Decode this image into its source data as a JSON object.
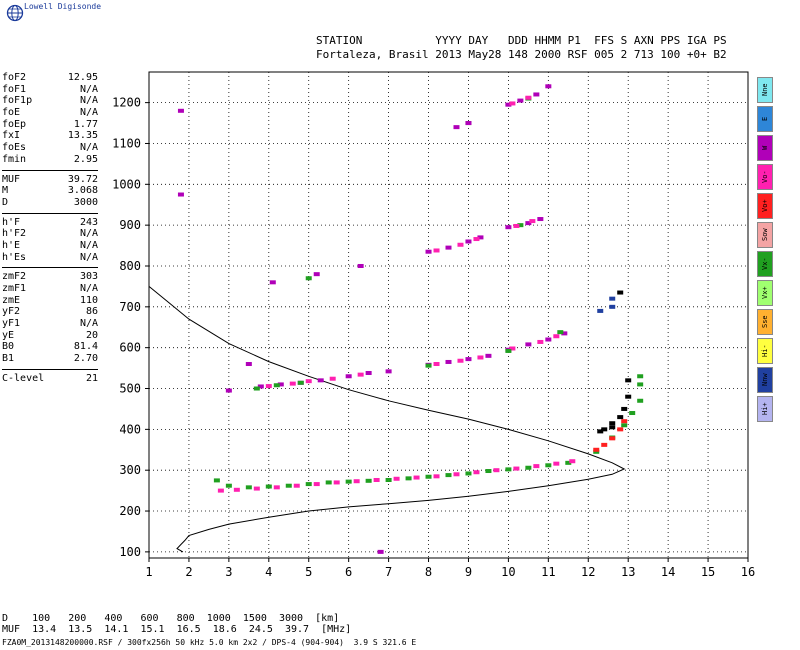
{
  "brand": "Lowell Digisonde",
  "header": {
    "line1": "STATION           YYYY DAY   DDD HHMM P1  FFS S AXN PPS IGA PS",
    "line2": "Fortaleza, Brasil 2013 May28 148 2000 RSF 005 2 713 100 +0+ B2"
  },
  "params": [
    {
      "k": "foF2",
      "v": "12.95"
    },
    {
      "k": "foF1",
      "v": "N/A"
    },
    {
      "k": "foF1p",
      "v": "N/A"
    },
    {
      "k": "foE",
      "v": "N/A"
    },
    {
      "k": "foEp",
      "v": "1.77"
    },
    {
      "k": "fxI",
      "v": "13.35"
    },
    {
      "k": "foEs",
      "v": "N/A"
    },
    {
      "k": "fmin",
      "v": "2.95"
    },
    {
      "k": "---"
    },
    {
      "k": "MUF",
      "v": "39.72"
    },
    {
      "k": "M",
      "v": "3.068"
    },
    {
      "k": "D",
      "v": "3000"
    },
    {
      "k": "---"
    },
    {
      "k": "h'F",
      "v": "243"
    },
    {
      "k": "h'F2",
      "v": "N/A"
    },
    {
      "k": "h'E",
      "v": "N/A"
    },
    {
      "k": "h'Es",
      "v": "N/A"
    },
    {
      "k": "---"
    },
    {
      "k": "zmF2",
      "v": "303"
    },
    {
      "k": "zmF1",
      "v": "N/A"
    },
    {
      "k": "zmE",
      "v": "110"
    },
    {
      "k": "yF2",
      "v": "86"
    },
    {
      "k": "yF1",
      "v": "N/A"
    },
    {
      "k": "yE",
      "v": "20"
    },
    {
      "k": "B0",
      "v": "81.4"
    },
    {
      "k": "B1",
      "v": "2.70"
    },
    {
      "k": "---"
    },
    {
      "k": "C-level",
      "v": "21"
    }
  ],
  "legend": [
    {
      "label": "Nne",
      "color": "#7fe8f0"
    },
    {
      "label": "E",
      "color": "#2e86d8"
    },
    {
      "label": "W",
      "color": "#b000b8"
    },
    {
      "label": "Vo-",
      "color": "#ff20b0"
    },
    {
      "label": "Vo+",
      "color": "#ff2020"
    },
    {
      "label": "Sow",
      "color": "#f4a4a4"
    },
    {
      "label": "Vx-",
      "color": "#20a020"
    },
    {
      "label": "Vx+",
      "color": "#a0ff70"
    },
    {
      "label": "Sse",
      "color": "#ffb030"
    },
    {
      "label": "Hi-",
      "color": "#ffff40"
    },
    {
      "label": "Nnw",
      "color": "#2040a0"
    },
    {
      "label": "Hi+",
      "color": "#b4b4f0"
    }
  ],
  "muf_table": {
    "line1": "D    100   200   400   600   800  1000  1500  3000  [km]",
    "line2": "MUF  13.4  13.5  14.1  15.1  16.5  18.6  24.5  39.7  [MHz]"
  },
  "footer": "FZA0M_2013148200000.RSF / 300fx256h 50 kHz 5.0 km 2x2 / DPS-4 (904-904)  3.9 S 321.6 E",
  "chart_data": {
    "type": "scatter",
    "xlim": [
      1,
      16
    ],
    "ylim": [
      85,
      1275
    ],
    "xticks": [
      1,
      2,
      3,
      4,
      5,
      6,
      7,
      8,
      9,
      10,
      11,
      12,
      13,
      14,
      15,
      16
    ],
    "yticks": [
      100,
      200,
      300,
      400,
      500,
      600,
      700,
      800,
      900,
      1000,
      1100,
      1200
    ],
    "grid": true,
    "series": [
      {
        "color": "#20a020",
        "points": [
          [
            2.7,
            275
          ],
          [
            3.0,
            262
          ],
          [
            3.5,
            258
          ],
          [
            4.0,
            260
          ],
          [
            4.5,
            262
          ],
          [
            5.0,
            266
          ],
          [
            5.5,
            270
          ],
          [
            6.0,
            272
          ],
          [
            6.5,
            274
          ],
          [
            7.0,
            276
          ],
          [
            7.5,
            280
          ],
          [
            8.0,
            284
          ],
          [
            8.5,
            288
          ],
          [
            9.0,
            292
          ],
          [
            9.5,
            298
          ],
          [
            10.0,
            302
          ],
          [
            10.5,
            306
          ],
          [
            11.0,
            312
          ],
          [
            11.5,
            318
          ],
          [
            12.2,
            345
          ],
          [
            12.6,
            380
          ],
          [
            12.9,
            410
          ],
          [
            13.1,
            440
          ],
          [
            13.3,
            470
          ],
          [
            13.3,
            510
          ],
          [
            13.3,
            530
          ]
        ]
      },
      {
        "color": "#ff20b0",
        "points": [
          [
            2.8,
            250
          ],
          [
            3.2,
            252
          ],
          [
            3.7,
            255
          ],
          [
            4.2,
            258
          ],
          [
            4.7,
            262
          ],
          [
            5.2,
            266
          ],
          [
            5.7,
            270
          ],
          [
            6.2,
            273
          ],
          [
            6.7,
            276
          ],
          [
            7.2,
            279
          ],
          [
            7.7,
            282
          ],
          [
            8.2,
            285
          ],
          [
            8.7,
            290
          ],
          [
            9.2,
            295
          ],
          [
            9.7,
            300
          ],
          [
            10.2,
            304
          ],
          [
            10.7,
            310
          ],
          [
            11.2,
            316
          ],
          [
            11.6,
            322
          ]
        ]
      },
      {
        "color": "#ff2020",
        "points": [
          [
            12.2,
            350
          ],
          [
            12.4,
            362
          ],
          [
            12.6,
            378
          ],
          [
            12.8,
            400
          ],
          [
            12.9,
            420
          ]
        ]
      },
      {
        "color": "#b000b8",
        "points": [
          [
            3.8,
            505
          ],
          [
            4.3,
            510
          ],
          [
            4.8,
            514
          ],
          [
            5.3,
            520
          ],
          [
            6.0,
            530
          ],
          [
            6.5,
            538
          ],
          [
            7.0,
            542
          ],
          [
            8.0,
            558
          ],
          [
            8.5,
            565
          ],
          [
            9.0,
            572
          ],
          [
            9.5,
            580
          ],
          [
            10.0,
            595
          ],
          [
            10.5,
            608
          ],
          [
            11.0,
            620
          ],
          [
            11.4,
            635
          ],
          [
            6.8,
            100
          ],
          [
            3.0,
            495
          ],
          [
            1.8,
            1180
          ],
          [
            1.8,
            975
          ],
          [
            3.5,
            560
          ]
        ]
      },
      {
        "color": "#ff20b0",
        "points": [
          [
            4.0,
            506
          ],
          [
            4.6,
            512
          ],
          [
            5.0,
            518
          ],
          [
            5.6,
            524
          ],
          [
            6.3,
            534
          ],
          [
            8.2,
            560
          ],
          [
            8.8,
            568
          ],
          [
            9.3,
            576
          ],
          [
            10.1,
            598
          ],
          [
            10.8,
            614
          ],
          [
            11.2,
            628
          ]
        ]
      },
      {
        "color": "#20a020",
        "points": [
          [
            3.7,
            500
          ],
          [
            4.2,
            508
          ],
          [
            4.8,
            514
          ],
          [
            8.0,
            556
          ],
          [
            10.0,
            592
          ],
          [
            11.3,
            638
          ],
          [
            9.0,
            1150
          ],
          [
            10.5,
            1210
          ],
          [
            5.0,
            770
          ],
          [
            10.3,
            900
          ]
        ]
      },
      {
        "color": "#b000b8",
        "points": [
          [
            8.0,
            835
          ],
          [
            8.5,
            845
          ],
          [
            9.0,
            860
          ],
          [
            9.3,
            870
          ],
          [
            10.0,
            895
          ],
          [
            10.5,
            905
          ],
          [
            10.8,
            915
          ],
          [
            8.7,
            1140
          ],
          [
            9.0,
            1150
          ],
          [
            10.0,
            1195
          ],
          [
            10.3,
            1205
          ],
          [
            10.7,
            1220
          ],
          [
            11.0,
            1240
          ],
          [
            6.3,
            800
          ],
          [
            4.1,
            760
          ],
          [
            5.2,
            780
          ]
        ]
      },
      {
        "color": "#ff20b0",
        "points": [
          [
            8.2,
            838
          ],
          [
            8.8,
            852
          ],
          [
            9.2,
            866
          ],
          [
            10.2,
            898
          ],
          [
            10.6,
            910
          ],
          [
            10.1,
            1198
          ],
          [
            10.5,
            1212
          ]
        ]
      },
      {
        "color": "#2040a0",
        "points": [
          [
            12.6,
            720
          ],
          [
            12.6,
            700
          ],
          [
            12.3,
            690
          ]
        ]
      },
      {
        "color": "#000000",
        "points": [
          [
            12.4,
            400
          ],
          [
            12.6,
            415
          ],
          [
            12.8,
            430
          ],
          [
            12.9,
            450
          ],
          [
            13.0,
            480
          ],
          [
            13.0,
            520
          ],
          [
            12.8,
            735
          ],
          [
            12.3,
            395
          ],
          [
            12.6,
            405
          ]
        ]
      }
    ],
    "profile": [
      [
        1.85,
        100
      ],
      [
        1.7,
        108
      ],
      [
        1.8,
        118
      ],
      [
        1.9,
        128
      ],
      [
        2.0,
        140
      ],
      [
        2.5,
        155
      ],
      [
        3.0,
        168
      ],
      [
        4.0,
        185
      ],
      [
        5.0,
        200
      ],
      [
        6.0,
        210
      ],
      [
        7.0,
        218
      ],
      [
        8.0,
        226
      ],
      [
        9.0,
        236
      ],
      [
        10.0,
        248
      ],
      [
        11.0,
        262
      ],
      [
        12.0,
        278
      ],
      [
        12.6,
        290
      ],
      [
        12.9,
        303
      ],
      [
        12.6,
        318
      ],
      [
        12.0,
        340
      ],
      [
        11.0,
        372
      ],
      [
        10.0,
        400
      ],
      [
        9.0,
        425
      ],
      [
        8.0,
        447
      ],
      [
        7.0,
        470
      ],
      [
        6.0,
        497
      ],
      [
        5.0,
        530
      ],
      [
        4.0,
        566
      ],
      [
        3.0,
        610
      ],
      [
        2.0,
        670
      ],
      [
        1.5,
        710
      ],
      [
        1.0,
        750
      ]
    ]
  }
}
